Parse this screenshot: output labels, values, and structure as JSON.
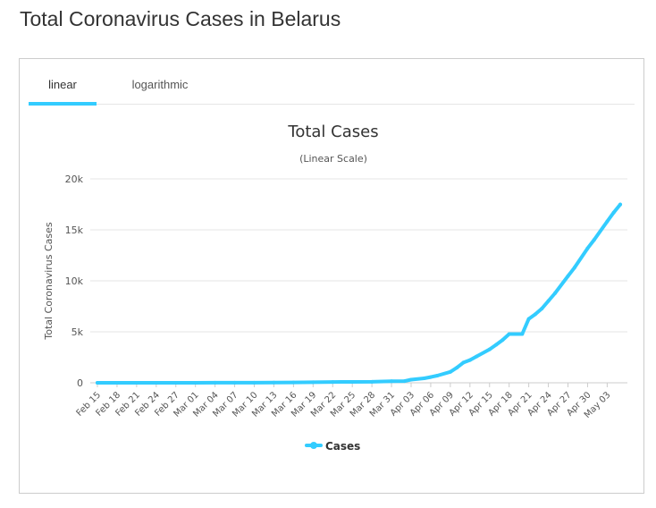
{
  "page": {
    "title": "Total Coronavirus Cases in Belarus"
  },
  "tabs": [
    {
      "label": "linear"
    },
    {
      "label": "logarithmic"
    }
  ],
  "chart_data": {
    "type": "line",
    "title": "Total Cases",
    "subtitle": "(Linear Scale)",
    "ylabel": "Total Coronavirus Cases",
    "xlabel": "",
    "ylim": [
      0,
      20000
    ],
    "y_ticks": [
      "0",
      "5k",
      "10k",
      "15k",
      "20k"
    ],
    "y_tick_values": [
      0,
      5000,
      10000,
      15000,
      20000
    ],
    "x_tick_labels": [
      "Feb 15",
      "Feb 18",
      "Feb 21",
      "Feb 24",
      "Feb 27",
      "Mar 01",
      "Mar 04",
      "Mar 07",
      "Mar 10",
      "Mar 13",
      "Mar 16",
      "Mar 19",
      "Mar 22",
      "Mar 25",
      "Mar 28",
      "Mar 31",
      "Apr 03",
      "Apr 06",
      "Apr 09",
      "Apr 12",
      "Apr 15",
      "Apr 18",
      "Apr 21",
      "Apr 24",
      "Apr 27",
      "Apr 30",
      "May 03"
    ],
    "grid": true,
    "legend": "bottom-center",
    "color": "#33ccff",
    "series": [
      {
        "name": "Cases",
        "x": [
          "Feb 15",
          "Feb 18",
          "Feb 21",
          "Feb 24",
          "Feb 27",
          "Mar 01",
          "Mar 04",
          "Mar 07",
          "Mar 10",
          "Mar 13",
          "Mar 16",
          "Mar 19",
          "Mar 22",
          "Mar 25",
          "Mar 28",
          "Mar 31",
          "Apr 02",
          "Apr 03",
          "Apr 05",
          "Apr 06",
          "Apr 07",
          "Apr 09",
          "Apr 10",
          "Apr 11",
          "Apr 12",
          "Apr 13",
          "Apr 15",
          "Apr 16",
          "Apr 17",
          "Apr 18",
          "Apr 19",
          "Apr 20",
          "Apr 21",
          "Apr 22",
          "Apr 23",
          "Apr 24",
          "Apr 25",
          "Apr 27",
          "Apr 28",
          "Apr 30",
          "May 01",
          "May 03",
          "May 04",
          "May 05"
        ],
        "values": [
          0,
          0,
          0,
          0,
          1,
          1,
          6,
          6,
          9,
          27,
          36,
          51,
          76,
          86,
          94,
          152,
          163,
          304,
          440,
          562,
          700,
          1066,
          1486,
          1981,
          2226,
          2578,
          3281,
          3728,
          4204,
          4779,
          4779,
          4779,
          6264,
          6723,
          7281,
          8022,
          8773,
          10463,
          11289,
          13181,
          14027,
          15828,
          16705,
          17489
        ]
      }
    ]
  }
}
